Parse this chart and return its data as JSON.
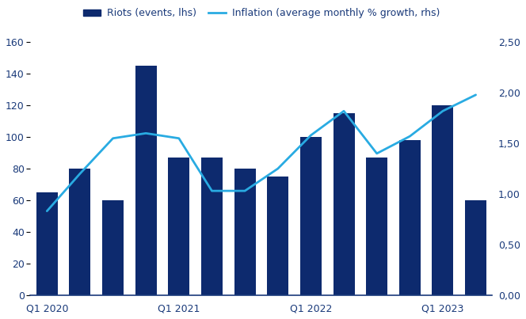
{
  "x_tick_labels": [
    "Q1 2020",
    "Q1 2021",
    "Q1 2022",
    "Q1 2023"
  ],
  "x_tick_positions": [
    0,
    4,
    8,
    12
  ],
  "riots": [
    65,
    80,
    60,
    145,
    87,
    87,
    80,
    75,
    100,
    115,
    87,
    98,
    120,
    60
  ],
  "inflation": [
    0.83,
    1.2,
    1.55,
    1.6,
    1.55,
    1.03,
    1.03,
    1.25,
    1.58,
    1.82,
    1.4,
    1.57,
    1.82,
    1.98
  ],
  "bar_color": "#0d2a6e",
  "line_color": "#29abe2",
  "ylim_left": [
    0,
    160
  ],
  "ylim_right": [
    0,
    2.5
  ],
  "yticks_left": [
    0,
    20,
    40,
    60,
    80,
    100,
    120,
    140,
    160
  ],
  "yticks_right": [
    0.0,
    0.5,
    1.0,
    1.5,
    2.0,
    2.5
  ],
  "ytick_labels_right": [
    "0,00",
    "0,50",
    "1,00",
    "1,50",
    "2,00",
    "2,50"
  ],
  "ytick_labels_left": [
    "0",
    "20",
    "40",
    "60",
    "80",
    "100",
    "120",
    "140",
    "160"
  ],
  "legend_bar_label": "Riots (events, lhs)",
  "legend_line_label": "Inflation (average monthly % growth, rhs)",
  "bar_width": 0.65,
  "background_color": "#ffffff",
  "axis_color": "#1a3a7a",
  "n_bars": 14,
  "line_width": 2.0
}
